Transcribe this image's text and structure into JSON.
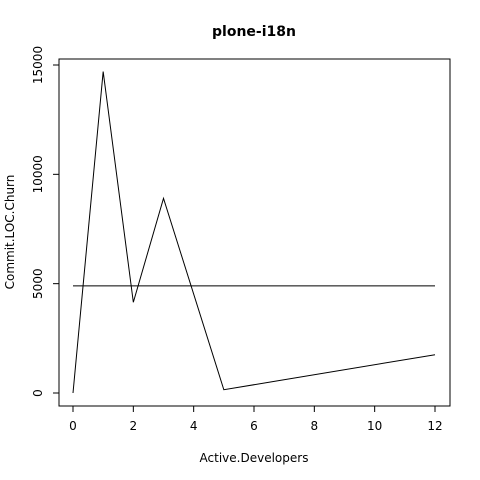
{
  "chart_data": {
    "type": "line",
    "title": "plone-i18n",
    "xlabel": "Active.Developers",
    "ylabel": "Commit.LOC.Churn",
    "xlim": [
      0,
      12
    ],
    "ylim": [
      0,
      15000
    ],
    "x_ticks": [
      0,
      2,
      4,
      6,
      8,
      10,
      12
    ],
    "y_ticks": [
      0,
      5000,
      10000,
      15000
    ],
    "grid": false,
    "series": [
      {
        "x": [
          0,
          1,
          2,
          3,
          5,
          12
        ],
        "y": [
          0,
          14700,
          4150,
          8900,
          150,
          1750
        ]
      }
    ],
    "reference_line": {
      "y": 4900
    }
  }
}
